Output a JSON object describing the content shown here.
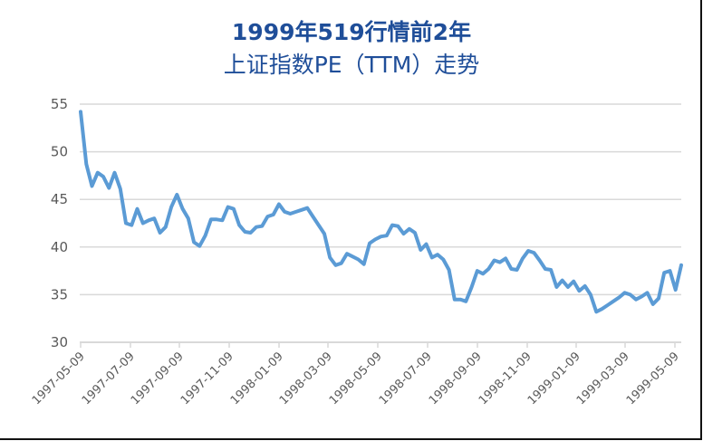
{
  "title": {
    "line1": "1999年519行情前2年",
    "line2": "上证指数PE（TTM）走势"
  },
  "colors": {
    "title": "#1f4e99",
    "line": "#5b9bd5",
    "grid": "#d9d9d9",
    "tick_text": "#595959"
  },
  "chart_data": {
    "type": "line",
    "title": "1999年519行情前2年 上证指数PE（TTM）走势",
    "xlabel": "",
    "ylabel": "",
    "ylim": [
      30,
      55
    ],
    "yticks": [
      30,
      35,
      40,
      45,
      50,
      55
    ],
    "grid": true,
    "legend": "none",
    "xtick_labels": [
      "1997-05-09",
      "1997-07-09",
      "1997-09-09",
      "1997-11-09",
      "1998-01-09",
      "1998-03-09",
      "1998-05-09",
      "1998-07-09",
      "1998-09-09",
      "1998-11-09",
      "1999-01-09",
      "1999-03-09",
      "1999-05-09"
    ],
    "series": [
      {
        "name": "上证指数PE（TTM）",
        "x_start": "1997-05-09",
        "x_end": "1999-05-18",
        "values": [
          54.2,
          48.7,
          46.4,
          47.8,
          47.4,
          46.2,
          47.8,
          46.1,
          42.5,
          42.3,
          44.0,
          42.5,
          42.8,
          43.0,
          41.5,
          42.1,
          44.2,
          45.5,
          44.0,
          43.0,
          40.5,
          40.1,
          41.2,
          42.9,
          42.9,
          42.8,
          44.2,
          44.0,
          42.3,
          41.6,
          41.5,
          42.1,
          42.2,
          43.2,
          43.4,
          44.5,
          43.7,
          43.5,
          43.7,
          43.9,
          44.1,
          43.2,
          42.3,
          41.4,
          38.9,
          38.1,
          38.3,
          39.3,
          39.0,
          38.7,
          38.2,
          40.4,
          40.8,
          41.1,
          41.2,
          42.3,
          42.2,
          41.4,
          41.9,
          41.5,
          39.7,
          40.3,
          38.9,
          39.2,
          38.7,
          37.6,
          34.5,
          34.5,
          34.3,
          35.8,
          37.5,
          37.2,
          37.7,
          38.6,
          38.4,
          38.8,
          37.7,
          37.6,
          38.8,
          39.6,
          39.4,
          38.6,
          37.7,
          37.6,
          35.8,
          36.5,
          35.8,
          36.4,
          35.4,
          35.9,
          35.0,
          33.2,
          33.5,
          33.9,
          34.3,
          34.7,
          35.2,
          35.0,
          34.5,
          34.8,
          35.2,
          34.0,
          34.6,
          37.3,
          37.5,
          35.5,
          38.1
        ]
      }
    ]
  },
  "axis": {
    "y_labels": [
      "55",
      "50",
      "45",
      "40",
      "35",
      "30"
    ],
    "x_labels": [
      "1997-05-09",
      "1997-07-09",
      "1997-09-09",
      "1997-11-09",
      "1998-01-09",
      "1998-03-09",
      "1998-05-09",
      "1998-07-09",
      "1998-09-09",
      "1998-11-09",
      "1999-01-09",
      "1999-03-09",
      "1999-05-09"
    ]
  }
}
